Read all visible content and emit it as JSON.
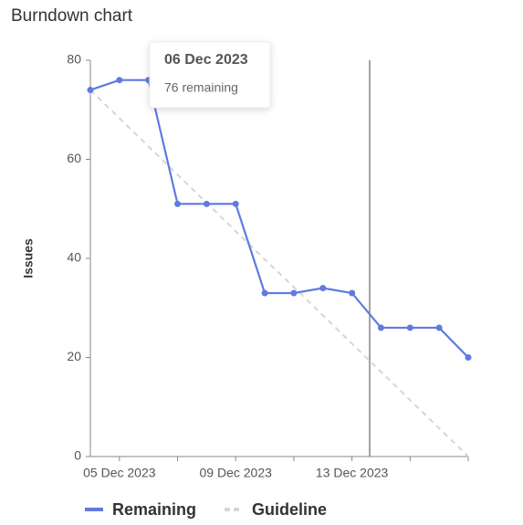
{
  "chart_data": {
    "type": "line",
    "title": "Burndown chart",
    "y_label": "Issues",
    "categories": [
      null,
      "05 Dec 2023",
      null,
      null,
      null,
      "09 Dec 2023",
      null,
      null,
      null,
      "13 Dec 2023",
      null,
      null,
      null,
      null
    ],
    "series": [
      {
        "name": "Remaining",
        "color": "#6179e0",
        "values": [
          74,
          76,
          76,
          51,
          51,
          51,
          33,
          33,
          34,
          33,
          26,
          26,
          26,
          20
        ]
      },
      {
        "name": "Guideline",
        "color": "#d6d6d6",
        "values": [
          74,
          68.3,
          62.6,
          56.9,
          51.2,
          45.5,
          39.8,
          34.2,
          28.5,
          22.8,
          17.1,
          11.4,
          5.7,
          0
        ]
      }
    ],
    "ylim": [
      0,
      80
    ],
    "yticks": [
      0,
      20,
      40,
      60,
      80
    ],
    "tooltip": {
      "title": "06 Dec 2023",
      "text": "76 remaining"
    }
  }
}
